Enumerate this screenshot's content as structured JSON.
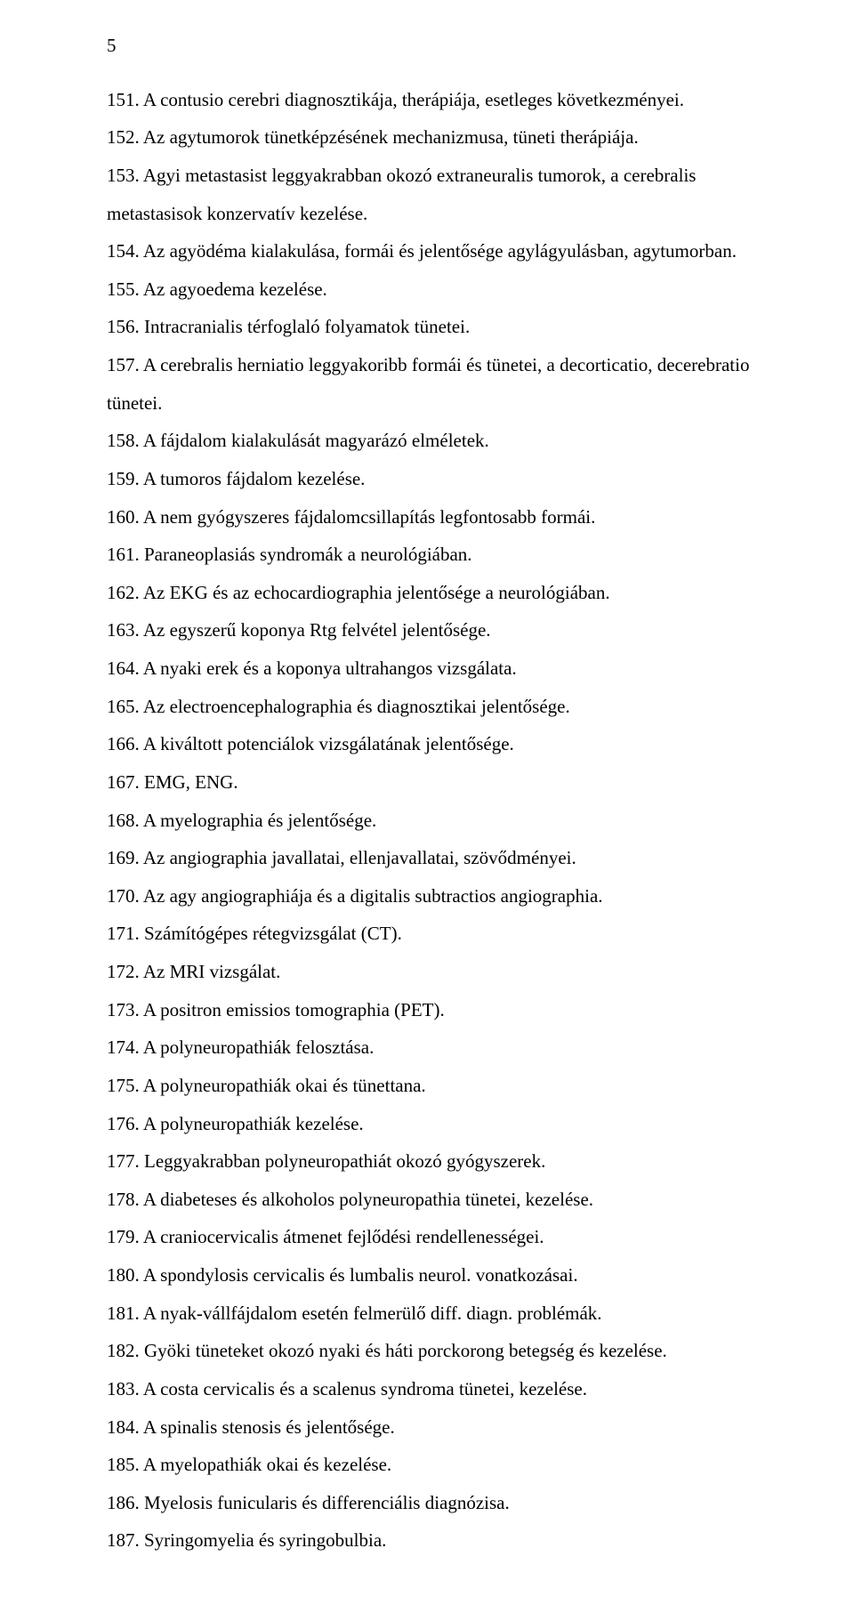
{
  "page_number": "5",
  "items": [
    "151. A contusio cerebri diagnosztikája, therápiája, esetleges következményei.",
    "152. Az agytumorok tünetképzésének mechanizmusa, tüneti therápiája.",
    "153. Agyi metastasist leggyakrabban okozó extraneuralis tumorok, a cerebralis metastasisok konzervatív kezelése.",
    "154. Az agyödéma kialakulása, formái és jelentősége agylágyulásban, agytumorban.",
    "155. Az agyoedema kezelése.",
    "156. Intracranialis térfoglaló folyamatok tünetei.",
    "157.  A cerebralis herniatio leggyakoribb formái és tünetei, a decorticatio, decerebratio tünetei.",
    "158. A fájdalom kialakulását magyarázó elméletek.",
    "159. A tumoros fájdalom kezelése.",
    "160. A nem gyógyszeres fájdalomcsillapítás legfontosabb formái.",
    "161. Paraneoplasiás syndromák a neurológiában.",
    "162. Az EKG és az echocardiographia jelentősége a neurológiában.",
    "163. Az egyszerű koponya Rtg felvétel jelentősége.",
    "164. A nyaki erek és a koponya ultrahangos vizsgálata.",
    "165. Az electroencephalographia és diagnosztikai jelentősége.",
    "166. A kiváltott potenciálok vizsgálatának jelentősége.",
    "167. EMG, ENG.",
    "168. A myelographia és jelentősége.",
    "169. Az angiographia javallatai, ellenjavallatai, szövődményei.",
    "170. Az agy angiographiája és a digitalis subtractios angiographia.",
    "171. Számítógépes rétegvizsgálat (CT).",
    "172.  Az MRI vizsgálat.",
    "173. A positron emissios tomographia (PET).",
    "174. A polyneuropathiák felosztása.",
    "175. A polyneuropathiák okai és tünettana.",
    "176. A polyneuropathiák kezelése.",
    "177. Leggyakrabban  polyneuropathiát okozó gyógyszerek.",
    "178. A diabeteses és alkoholos polyneuropathia tünetei, kezelése.",
    "179. A craniocervicalis átmenet fejlődési rendellenességei.",
    "180. A spondylosis cervicalis és lumbalis neurol. vonatkozásai.",
    "181. A nyak-vállfájdalom esetén felmerülő diff. diagn. problémák.",
    "182. Gyöki tüneteket okozó nyaki és háti porckorong betegség és kezelése.",
    "183. A costa cervicalis és a scalenus syndroma tünetei, kezelése.",
    "184. A spinalis stenosis és jelentősége.",
    "185. A myelopathiák okai és kezelése.",
    "186. Myelosis funicularis és differenciális diagnózisa.",
    "187. Syringomyelia és syringobulbia."
  ]
}
